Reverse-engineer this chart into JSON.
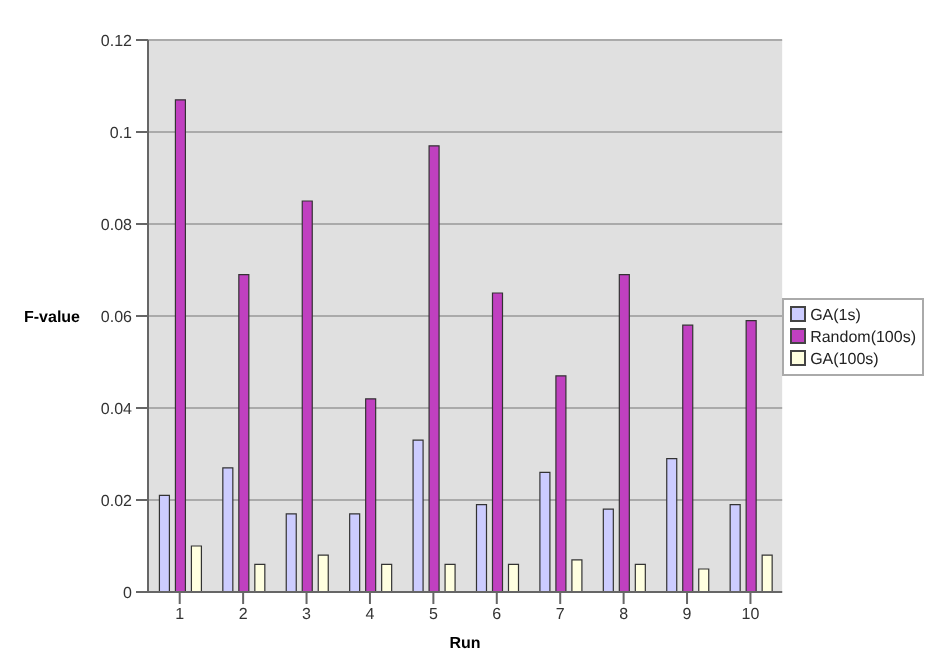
{
  "chart_data": {
    "type": "bar",
    "xlabel": "Run",
    "ylabel": "F-value",
    "categories": [
      "1",
      "2",
      "3",
      "4",
      "5",
      "6",
      "7",
      "8",
      "9",
      "10"
    ],
    "series": [
      {
        "name": "GA(1s)",
        "color": "#ccccff",
        "values": [
          0.021,
          0.027,
          0.017,
          0.017,
          0.033,
          0.019,
          0.026,
          0.018,
          0.029,
          0.019
        ]
      },
      {
        "name": "Random(100s)",
        "color": "#c040c0",
        "values": [
          0.107,
          0.069,
          0.085,
          0.042,
          0.097,
          0.065,
          0.047,
          0.069,
          0.058,
          0.059
        ]
      },
      {
        "name": "GA(100s)",
        "color": "#ffffe0",
        "values": [
          0.01,
          0.006,
          0.008,
          0.006,
          0.006,
          0.006,
          0.007,
          0.006,
          0.005,
          0.008
        ]
      }
    ],
    "ylim": [
      0,
      0.12
    ],
    "yticks": [
      0,
      0.02,
      0.04,
      0.06,
      0.08,
      {
        "value": 0.1,
        "label": "0.1"
      },
      0.12
    ],
    "grid": "y",
    "legend": "right"
  }
}
